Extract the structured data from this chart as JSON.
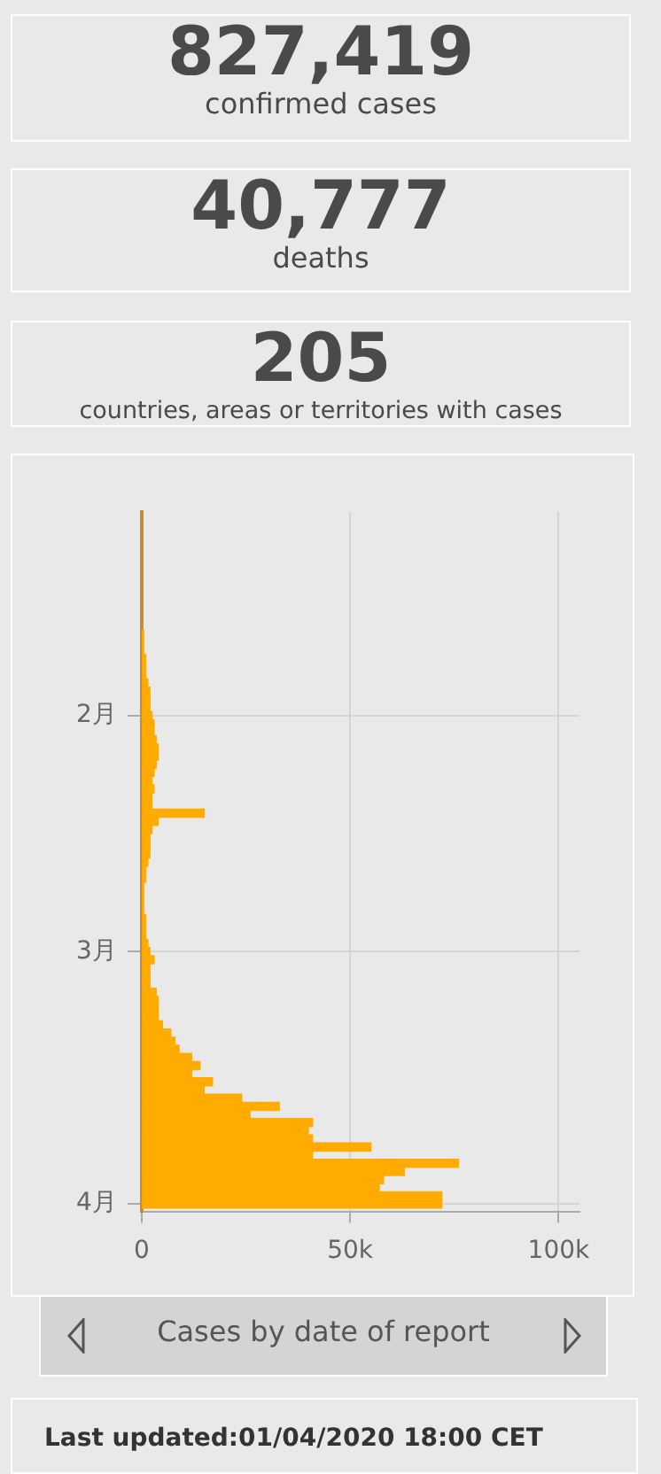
{
  "chart_data": [
    {
      "type": "other",
      "annotations": [
        "827,419",
        "confirmed cases",
        "40,777",
        "deaths",
        "205",
        "countries, areas or territories with cases"
      ]
    },
    {
      "type": "bar",
      "orientation": "horizontal",
      "title": "Cases by date of report",
      "color": "#ffab00",
      "x": [
        "2020-01-22",
        "2020-01-23",
        "2020-01-24",
        "2020-01-25",
        "2020-01-26",
        "2020-01-27",
        "2020-01-28",
        "2020-01-29",
        "2020-01-30",
        "2020-01-31",
        "2020-02-01",
        "2020-02-02",
        "2020-02-03",
        "2020-02-04",
        "2020-02-05",
        "2020-02-06",
        "2020-02-07",
        "2020-02-08",
        "2020-02-09",
        "2020-02-10",
        "2020-02-11",
        "2020-02-12",
        "2020-02-13",
        "2020-02-14",
        "2020-02-15",
        "2020-02-16",
        "2020-02-17",
        "2020-02-18",
        "2020-02-19",
        "2020-02-20",
        "2020-02-21",
        "2020-02-22",
        "2020-02-23",
        "2020-02-24",
        "2020-02-25",
        "2020-02-26",
        "2020-02-27",
        "2020-02-28",
        "2020-02-29",
        "2020-03-01",
        "2020-03-02",
        "2020-03-03",
        "2020-03-04",
        "2020-03-05",
        "2020-03-06",
        "2020-03-07",
        "2020-03-08",
        "2020-03-09",
        "2020-03-10",
        "2020-03-11",
        "2020-03-12",
        "2020-03-13",
        "2020-03-14",
        "2020-03-15",
        "2020-03-16",
        "2020-03-17",
        "2020-03-18",
        "2020-03-19",
        "2020-03-20",
        "2020-03-21",
        "2020-03-22",
        "2020-03-23",
        "2020-03-24",
        "2020-03-25",
        "2020-03-26",
        "2020-03-27",
        "2020-03-28",
        "2020-03-29",
        "2020-03-30",
        "2020-03-31",
        "2020-04-01"
      ],
      "values": [
        500,
        500,
        500,
        1000,
        1000,
        1000,
        1500,
        2000,
        2000,
        2000,
        2500,
        3000,
        3000,
        3500,
        4000,
        4000,
        3500,
        3000,
        2500,
        3000,
        2500,
        2500,
        15000,
        4000,
        2500,
        2000,
        2000,
        2000,
        1500,
        1000,
        1000,
        500,
        500,
        500,
        500,
        1000,
        1000,
        1000,
        1500,
        2000,
        3000,
        2000,
        2000,
        2000,
        3500,
        4000,
        4000,
        4000,
        5000,
        7000,
        8000,
        9000,
        12000,
        14000,
        12000,
        17000,
        15000,
        24000,
        33000,
        26000,
        41000,
        40000,
        41000,
        55000,
        41000,
        76000,
        63000,
        58000,
        57000,
        72000,
        72000
      ],
      "xlim": [
        0,
        105000
      ],
      "xticks": [
        0,
        {
          "value": 50000,
          "label": "50k"
        },
        {
          "value": 100000,
          "label": "100k"
        }
      ],
      "ylim": [
        "2020-04-02",
        "2020-01-07"
      ],
      "yticks": [
        {
          "value": "2020-02-01",
          "label": "2月"
        },
        {
          "value": "2020-03-01",
          "label": "3月"
        },
        {
          "value": "2020-04-01",
          "label": "4月"
        }
      ],
      "grid": true,
      "legend": false,
      "annotations": [
        "Last updated:01/04/2020 18:00 CET"
      ]
    }
  ]
}
